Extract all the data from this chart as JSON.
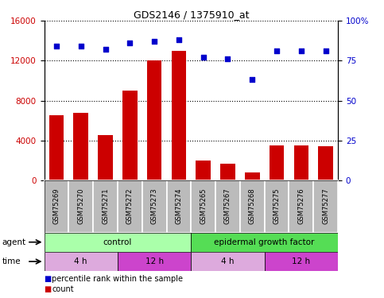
{
  "title": "GDS2146 / 1375910_at",
  "samples": [
    "GSM75269",
    "GSM75270",
    "GSM75271",
    "GSM75272",
    "GSM75273",
    "GSM75274",
    "GSM75265",
    "GSM75267",
    "GSM75268",
    "GSM75275",
    "GSM75276",
    "GSM75277"
  ],
  "counts": [
    6500,
    6800,
    4500,
    9000,
    12000,
    13000,
    2000,
    1700,
    800,
    3500,
    3500,
    3400
  ],
  "percentiles": [
    84,
    84,
    82,
    86,
    87,
    88,
    77,
    76,
    63,
    81,
    81,
    81
  ],
  "ylim_left": [
    0,
    16000
  ],
  "ylim_right": [
    0,
    100
  ],
  "yticks_left": [
    0,
    4000,
    8000,
    12000,
    16000
  ],
  "yticks_right": [
    0,
    25,
    50,
    75,
    100
  ],
  "bar_color": "#cc0000",
  "dot_color": "#0000cc",
  "agent_groups": [
    {
      "label": "control",
      "start": 0,
      "end": 6,
      "color": "#aaffaa"
    },
    {
      "label": "epidermal growth factor",
      "start": 6,
      "end": 12,
      "color": "#55dd55"
    }
  ],
  "time_groups": [
    {
      "label": "4 h",
      "start": 0,
      "end": 3,
      "color": "#ddaadd"
    },
    {
      "label": "12 h",
      "start": 3,
      "end": 6,
      "color": "#cc44cc"
    },
    {
      "label": "4 h",
      "start": 6,
      "end": 9,
      "color": "#ddaadd"
    },
    {
      "label": "12 h",
      "start": 9,
      "end": 12,
      "color": "#cc44cc"
    }
  ],
  "legend_items": [
    {
      "label": "count",
      "color": "#cc0000"
    },
    {
      "label": "percentile rank within the sample",
      "color": "#0000cc"
    }
  ],
  "bg_color": "#ffffff",
  "plot_bg": "#ffffff",
  "tick_label_bg": "#bbbbbb",
  "border_color": "#000000"
}
